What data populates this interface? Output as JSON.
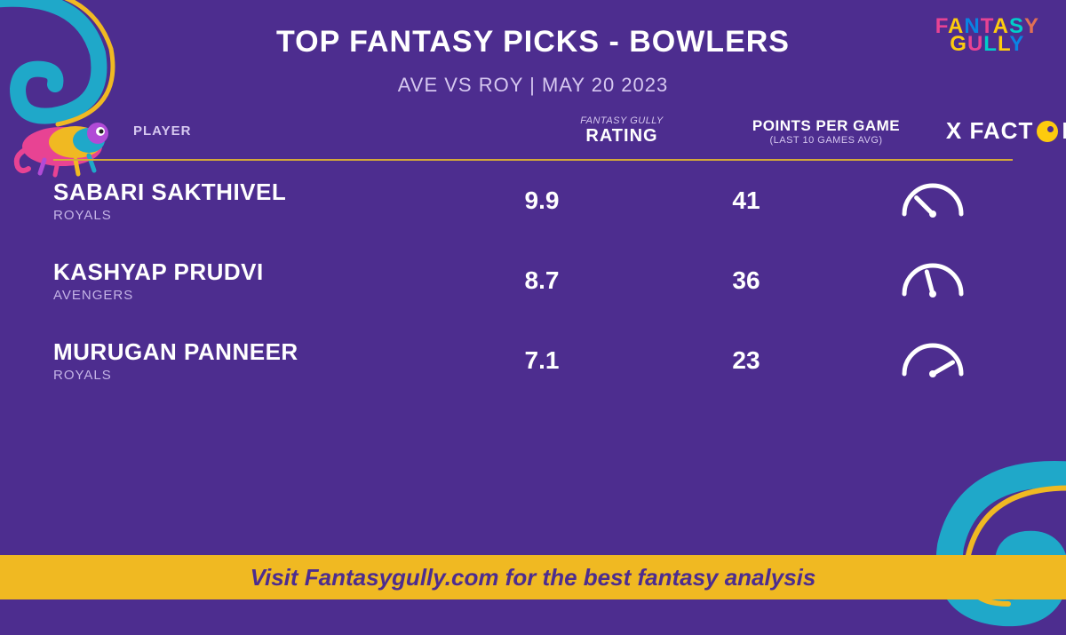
{
  "page": {
    "title": "TOP FANTASY PICKS - BOWLERS",
    "match": "AVE VS ROY",
    "date": "MAY 20 2023",
    "footer": "Visit Fantasygully.com for the best fantasy analysis"
  },
  "brand": {
    "line1": "FANTASY",
    "line2": "GULLY"
  },
  "headers": {
    "player": "PLAYER",
    "rating_small": "FANTASY GULLY",
    "rating_big": "RATING",
    "ppg_big": "POINTS PER GAME",
    "ppg_small": "(LAST 10 GAMES AVG)",
    "xfactor_pre": "X FACT",
    "xfactor_post": "R"
  },
  "colors": {
    "background": "#4d2d8f",
    "footer_bg": "#f0b922",
    "footer_text": "#4d2d8f",
    "text_white": "#ffffff",
    "text_light": "#d6c8f0",
    "divider": "#d4a938",
    "swirl_primary": "#1fa8c9",
    "swirl_accent": "#f0b922"
  },
  "players": [
    {
      "name": "SABARI SAKTHIVEL",
      "team": "ROYALS",
      "rating": "9.9",
      "ppg": "41",
      "gauge_angle": 45
    },
    {
      "name": "KASHYAP PRUDVI",
      "team": "AVENGERS",
      "rating": "8.7",
      "ppg": "36",
      "gauge_angle": 75
    },
    {
      "name": "MURUGAN PANNEER",
      "team": "ROYALS",
      "rating": "7.1",
      "ppg": "23",
      "gauge_angle": 150
    }
  ]
}
